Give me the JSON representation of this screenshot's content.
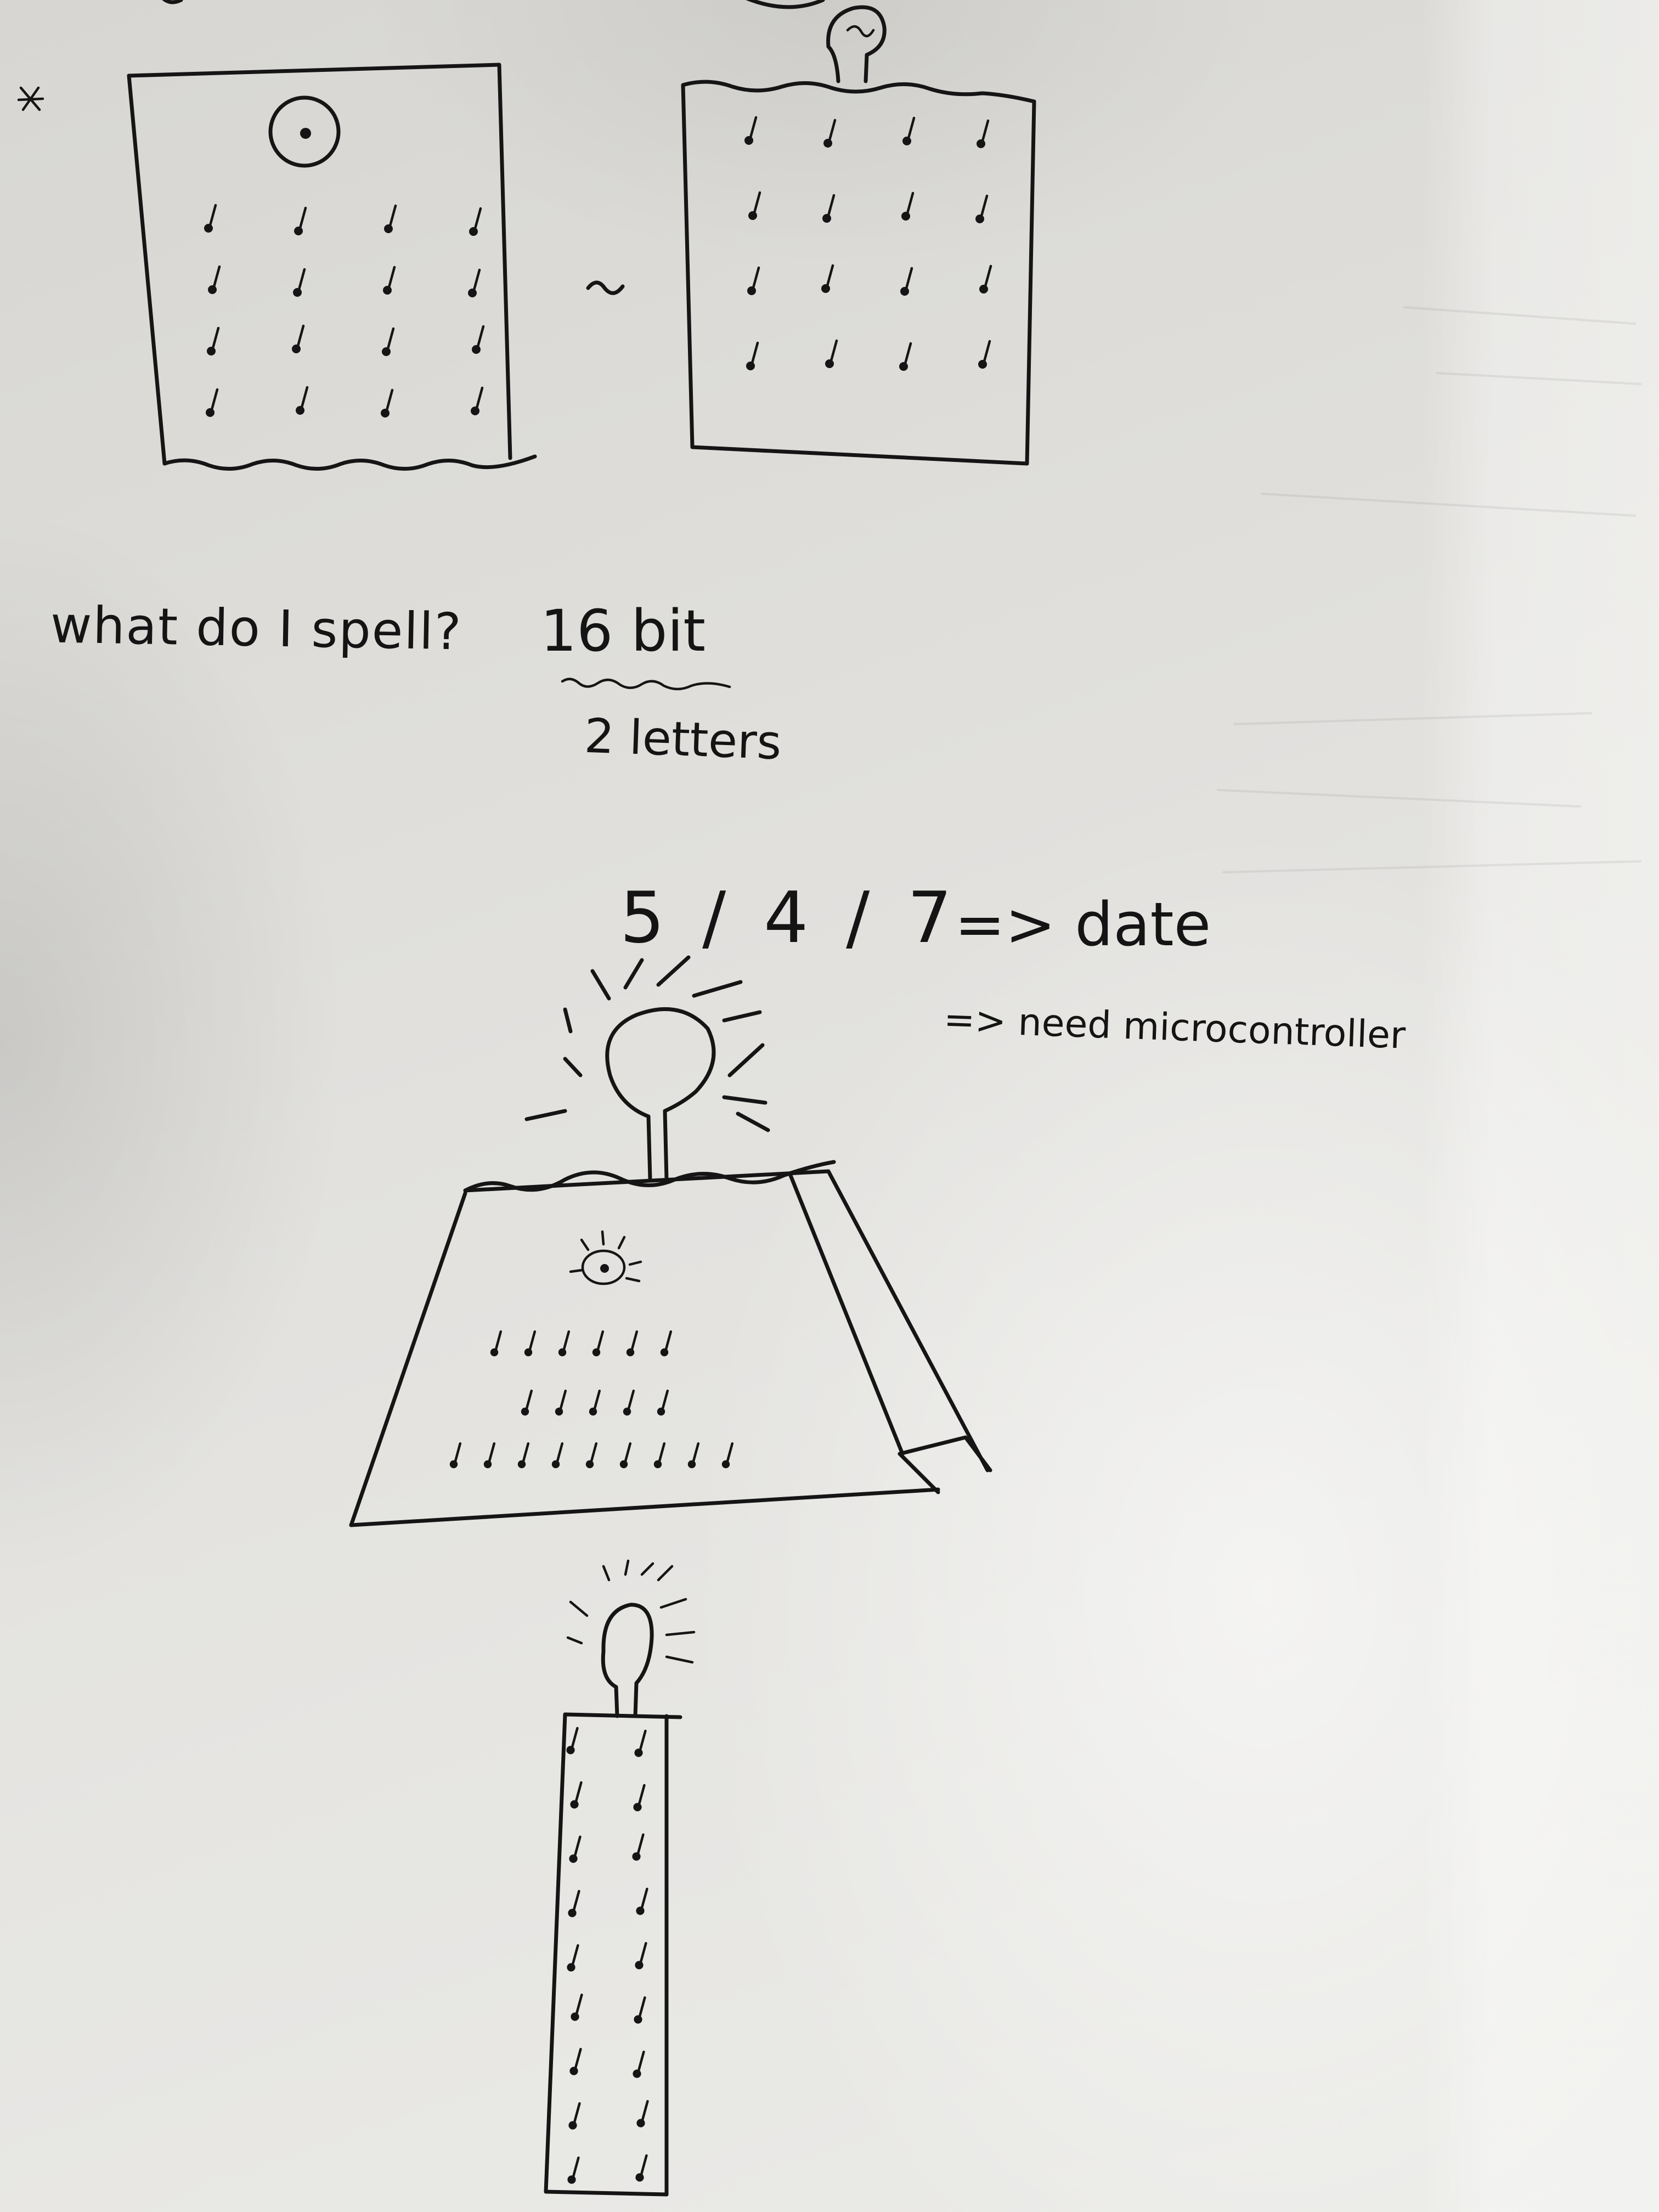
{
  "notes": {
    "question": "what do I spell?",
    "bits": "16 bit",
    "letters": "2 letters",
    "numbers": "5 / 4 / 7",
    "date": "=> date",
    "microcontroller": "=> need microcontroller"
  }
}
